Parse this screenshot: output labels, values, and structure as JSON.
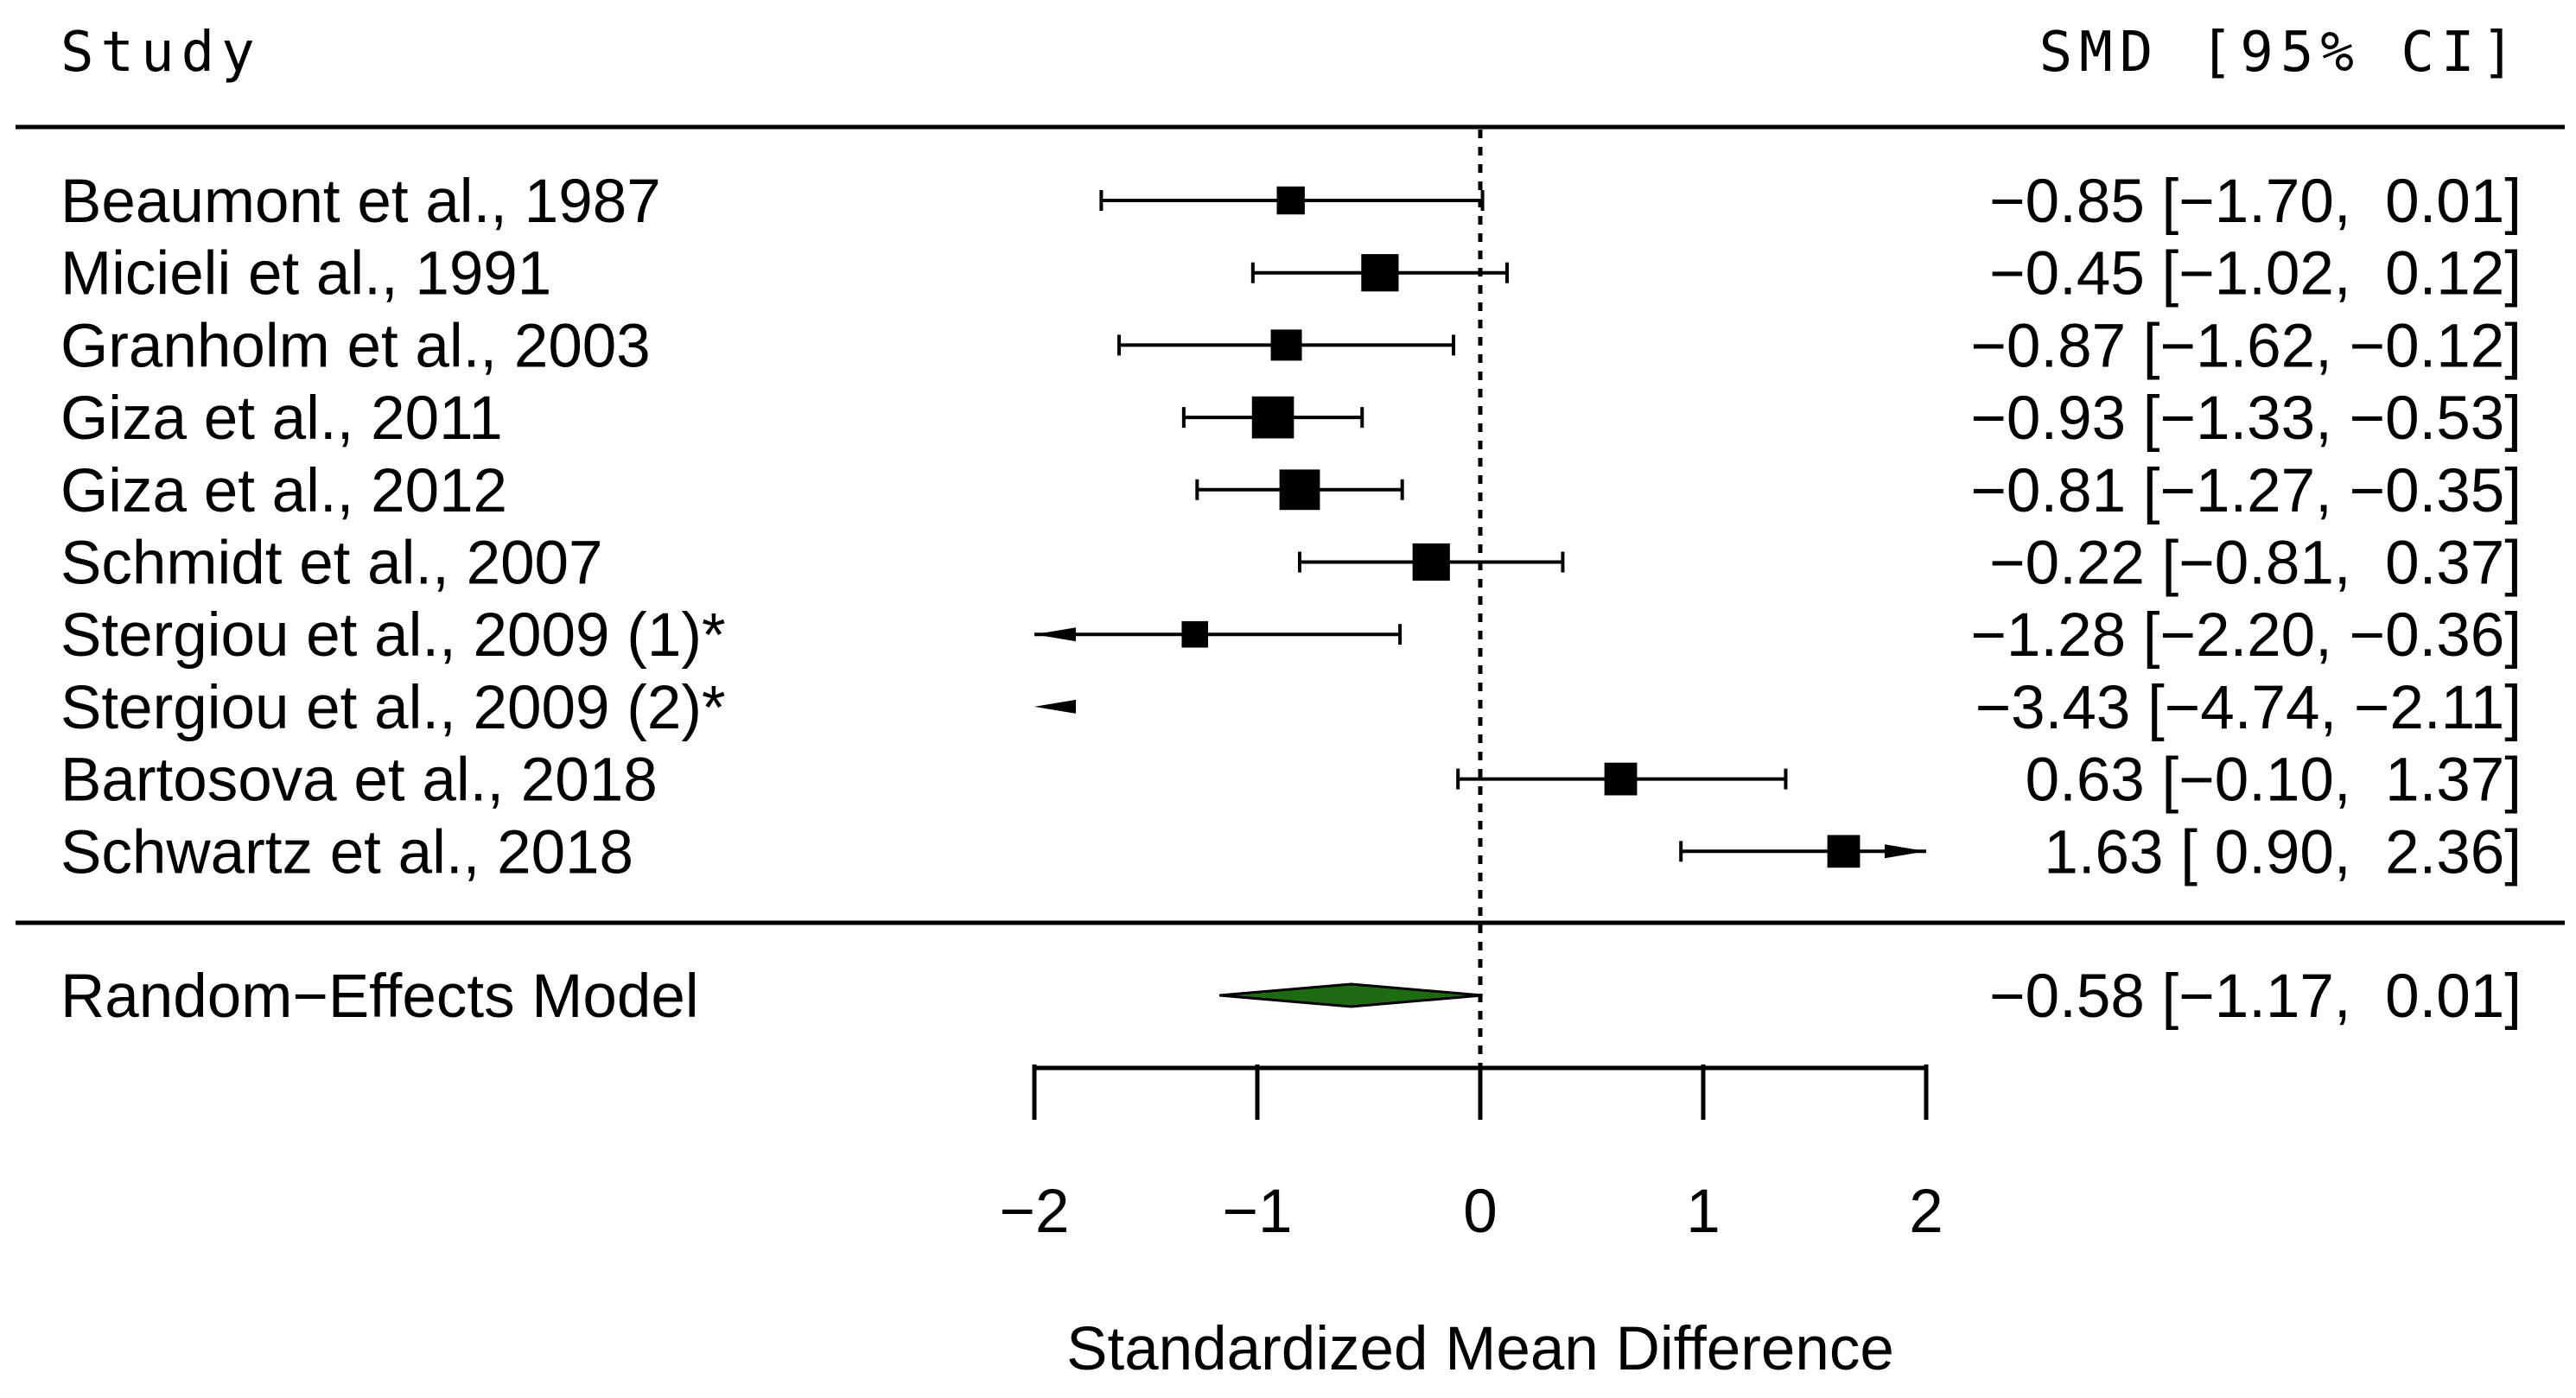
{
  "chart_data": {
    "type": "forest",
    "header": {
      "study": "Study",
      "effect": "SMD [95% CI]"
    },
    "xlabel": "Standardized Mean Difference",
    "xlim": [
      -2,
      2
    ],
    "ticks": [
      -2,
      -1,
      0,
      1,
      2
    ],
    "tick_labels": [
      "−2",
      "−1",
      "0",
      "1",
      "2"
    ],
    "reference_line": 0,
    "studies": [
      {
        "label": "Beaumont et al., 1987",
        "est": -0.85,
        "lo": -1.7,
        "hi": 0.01,
        "weight": 0.9,
        "text": "−0.85 [−1.70,  0.01]"
      },
      {
        "label": "Micieli et al., 1991",
        "est": -0.45,
        "lo": -1.02,
        "hi": 0.12,
        "weight": 1.2,
        "text": "−0.45 [−1.02,  0.12]"
      },
      {
        "label": "Granholm et al., 2003",
        "est": -0.87,
        "lo": -1.62,
        "hi": -0.12,
        "weight": 1.0,
        "text": "−0.87 [−1.62, −0.12]"
      },
      {
        "label": "Giza et al., 2011",
        "est": -0.93,
        "lo": -1.33,
        "hi": -0.53,
        "weight": 1.35,
        "text": "−0.93 [−1.33, −0.53]"
      },
      {
        "label": "Giza et al., 2012",
        "est": -0.81,
        "lo": -1.27,
        "hi": -0.35,
        "weight": 1.3,
        "text": "−0.81 [−1.27, −0.35]"
      },
      {
        "label": "Schmidt et al., 2007",
        "est": -0.22,
        "lo": -0.81,
        "hi": 0.37,
        "weight": 1.2,
        "text": "−0.22 [−0.81,  0.37]"
      },
      {
        "label": "Stergiou et al., 2009 (1)*",
        "est": -1.28,
        "lo": -2.2,
        "hi": -0.36,
        "weight": 0.85,
        "text": "−1.28 [−2.20, −0.36]"
      },
      {
        "label": "Stergiou et al., 2009 (2)*",
        "est": -3.43,
        "lo": -4.74,
        "hi": -2.11,
        "weight": 0.6,
        "text": "−3.43 [−4.74, −2.11]"
      },
      {
        "label": "Bartosova et al., 2018",
        "est": 0.63,
        "lo": -0.1,
        "hi": 1.37,
        "weight": 1.05,
        "text": "0.63 [−0.10,  1.37]"
      },
      {
        "label": "Schwartz et al., 2018",
        "est": 1.63,
        "lo": 0.9,
        "hi": 2.36,
        "weight": 1.05,
        "text": "1.63 [ 0.90,  2.36]"
      }
    ],
    "summary": {
      "label": "Random−Effects Model",
      "est": -0.58,
      "lo": -1.17,
      "hi": 0.01,
      "text": "−0.58 [−1.17,  0.01]",
      "color": "#1e6b12"
    }
  }
}
